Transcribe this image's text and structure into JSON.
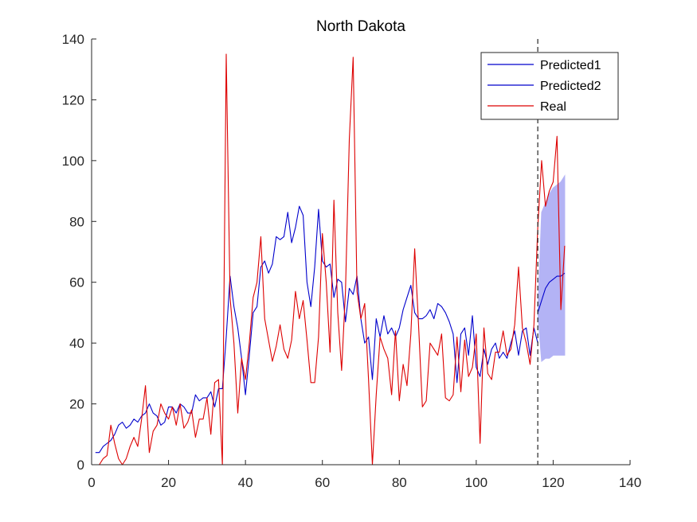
{
  "chart_data": {
    "type": "line",
    "title": "North Dakota",
    "xlabel": "",
    "ylabel": "",
    "xlim": [
      0,
      140
    ],
    "ylim": [
      0,
      140
    ],
    "xticks": [
      0,
      20,
      40,
      60,
      80,
      100,
      120,
      140
    ],
    "yticks": [
      0,
      20,
      40,
      60,
      80,
      100,
      120,
      140
    ],
    "grid": false,
    "legend_position": "top-right",
    "divider_x": 116,
    "series": [
      {
        "name": "Predicted1",
        "color": "#0000cc",
        "x": [
          1,
          2,
          3,
          4,
          5,
          6,
          7,
          8,
          9,
          10,
          11,
          12,
          13,
          14,
          15,
          16,
          17,
          18,
          19,
          20,
          21,
          22,
          23,
          24,
          25,
          26,
          27,
          28,
          29,
          30,
          31,
          32,
          33,
          34,
          35,
          36,
          37,
          38,
          39,
          40,
          41,
          42,
          43,
          44,
          45,
          46,
          47,
          48,
          49,
          50,
          51,
          52,
          53,
          54,
          55,
          56,
          57,
          58,
          59,
          60,
          61,
          62,
          63,
          64,
          65,
          66,
          67,
          68,
          69,
          70,
          71,
          72,
          73,
          74,
          75,
          76,
          77,
          78,
          79,
          80,
          81,
          82,
          83,
          84,
          85,
          86,
          87,
          88,
          89,
          90,
          91,
          92,
          93,
          94,
          95,
          96,
          97,
          98,
          99,
          100,
          101,
          102,
          103,
          104,
          105,
          106,
          107,
          108,
          109,
          110,
          111,
          112,
          113,
          114,
          115,
          116
        ],
        "y": [
          4,
          4,
          6,
          7,
          8,
          10,
          13,
          14,
          12,
          13,
          15,
          14,
          16,
          17,
          20,
          17,
          16,
          13,
          14,
          19,
          19,
          17,
          20,
          19,
          17,
          17,
          23,
          21,
          22,
          22,
          24,
          19,
          25,
          25,
          42,
          62,
          52,
          45,
          35,
          23,
          36,
          50,
          52,
          65,
          67,
          63,
          66,
          75,
          74,
          75,
          83,
          73,
          78,
          85,
          82,
          60,
          52,
          65,
          84,
          67,
          65,
          66,
          55,
          61,
          60,
          47,
          58,
          56,
          62,
          48,
          40,
          42,
          28,
          48,
          42,
          49,
          43,
          45,
          42,
          45,
          51,
          55,
          59,
          50,
          48,
          48,
          49,
          51,
          48,
          53,
          52,
          50,
          47,
          43,
          27,
          43,
          45,
          36,
          49,
          32,
          29,
          38,
          33,
          38,
          40,
          35,
          37,
          35,
          40,
          44,
          36,
          44,
          45,
          36,
          45,
          40
        ]
      },
      {
        "name": "Predicted2",
        "color": "#0000cc",
        "x": [
          116,
          117,
          118,
          119,
          120,
          121,
          122,
          123
        ],
        "y": [
          50,
          54,
          58,
          60,
          61,
          62,
          62,
          63
        ],
        "band_low": [
          50,
          34,
          35,
          35,
          36,
          36,
          36,
          36
        ],
        "band_high": [
          50,
          83,
          86,
          89,
          91,
          92,
          93,
          95
        ],
        "band_color": "#b3b3f5"
      },
      {
        "name": "Real",
        "color": "#dd0000",
        "x": [
          1,
          2,
          3,
          4,
          5,
          6,
          7,
          8,
          9,
          10,
          11,
          12,
          13,
          14,
          15,
          16,
          17,
          18,
          19,
          20,
          21,
          22,
          23,
          24,
          25,
          26,
          27,
          28,
          29,
          30,
          31,
          32,
          33,
          34,
          35,
          36,
          37,
          38,
          39,
          40,
          41,
          42,
          43,
          44,
          45,
          46,
          47,
          48,
          49,
          50,
          51,
          52,
          53,
          54,
          55,
          56,
          57,
          58,
          59,
          60,
          61,
          62,
          63,
          64,
          65,
          66,
          67,
          68,
          69,
          70,
          71,
          72,
          73,
          74,
          75,
          76,
          77,
          78,
          79,
          80,
          81,
          82,
          83,
          84,
          85,
          86,
          87,
          88,
          89,
          90,
          91,
          92,
          93,
          94,
          95,
          96,
          97,
          98,
          99,
          100,
          101,
          102,
          103,
          104,
          105,
          106,
          107,
          108,
          109,
          110,
          111,
          112,
          113,
          114,
          115,
          116,
          117,
          118,
          119,
          120,
          121,
          122,
          123
        ],
        "y": [
          0,
          0,
          2,
          3,
          13,
          7,
          2,
          0,
          2,
          6,
          9,
          6,
          15,
          26,
          4,
          11,
          13,
          20,
          17,
          15,
          19,
          13,
          20,
          12,
          14,
          18,
          9,
          15,
          15,
          22,
          10,
          27,
          28,
          0,
          135,
          55,
          40,
          17,
          35,
          28,
          40,
          55,
          60,
          75,
          48,
          41,
          34,
          39,
          46,
          38,
          35,
          41,
          57,
          48,
          54,
          41,
          27,
          27,
          42,
          76,
          60,
          37,
          87,
          50,
          31,
          57,
          107,
          134,
          57,
          48,
          53,
          28,
          0,
          23,
          42,
          38,
          35,
          23,
          44,
          21,
          33,
          26,
          43,
          71,
          46,
          19,
          21,
          40,
          38,
          36,
          43,
          22,
          21,
          23,
          42,
          24,
          41,
          29,
          32,
          43,
          7,
          45,
          30,
          28,
          37,
          37,
          44,
          36,
          38,
          46,
          65,
          45,
          40,
          33,
          46,
          78,
          100,
          85,
          90,
          93,
          108,
          51,
          72
        ]
      }
    ]
  }
}
